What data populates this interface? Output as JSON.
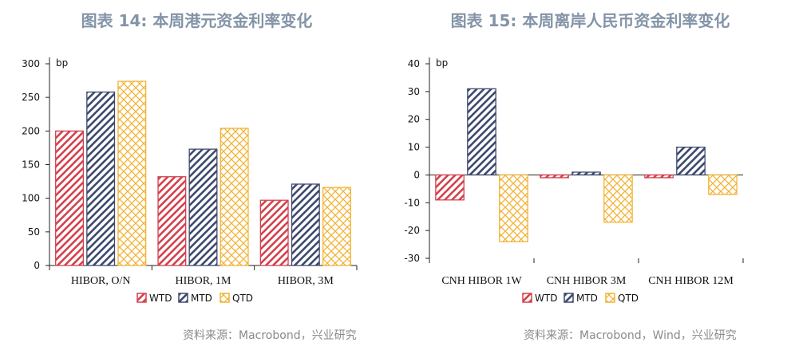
{
  "chart_data": [
    {
      "type": "bar",
      "title": "图表 14: 本周港元资金利率变化",
      "unit_label": "bp",
      "categories": [
        "HIBOR, O/N",
        "HIBOR, 1M",
        "HIBOR, 3M"
      ],
      "ylim": [
        0,
        300
      ],
      "yticks": [
        0,
        50,
        100,
        150,
        200,
        250,
        300
      ],
      "series": [
        {
          "name": "WTD",
          "values": [
            200,
            132,
            97
          ],
          "color": "#d4424e",
          "pattern": "diagonal-stripes"
        },
        {
          "name": "MTD",
          "values": [
            258,
            173,
            121
          ],
          "color": "#3e4a6e",
          "pattern": "diagonal-stripes"
        },
        {
          "name": "QTD",
          "values": [
            274,
            204,
            116
          ],
          "color": "#f2b336",
          "pattern": "crosshatch"
        }
      ],
      "legend_position": "bottom",
      "grid": false,
      "source": "资料来源：Macrobond，兴业研究"
    },
    {
      "type": "bar",
      "title": "图表 15: 本周离岸人民币资金利率变化",
      "unit_label": "bp",
      "categories": [
        "CNH HIBOR 1W",
        "CNH HIBOR 3M",
        "CNH HIBOR 12M"
      ],
      "ylim": [
        -30,
        40
      ],
      "yticks": [
        -30,
        -20,
        -10,
        0,
        10,
        20,
        30,
        40
      ],
      "series": [
        {
          "name": "WTD",
          "values": [
            -9,
            -1,
            -1
          ],
          "color": "#d4424e",
          "pattern": "diagonal-stripes"
        },
        {
          "name": "MTD",
          "values": [
            31,
            1,
            10
          ],
          "color": "#3e4a6e",
          "pattern": "diagonal-stripes"
        },
        {
          "name": "QTD",
          "values": [
            -24,
            -17,
            -7
          ],
          "color": "#f2b336",
          "pattern": "crosshatch"
        }
      ],
      "legend_position": "bottom",
      "grid": false,
      "source": "资料来源：Macrobond，Wind，兴业研究"
    }
  ]
}
